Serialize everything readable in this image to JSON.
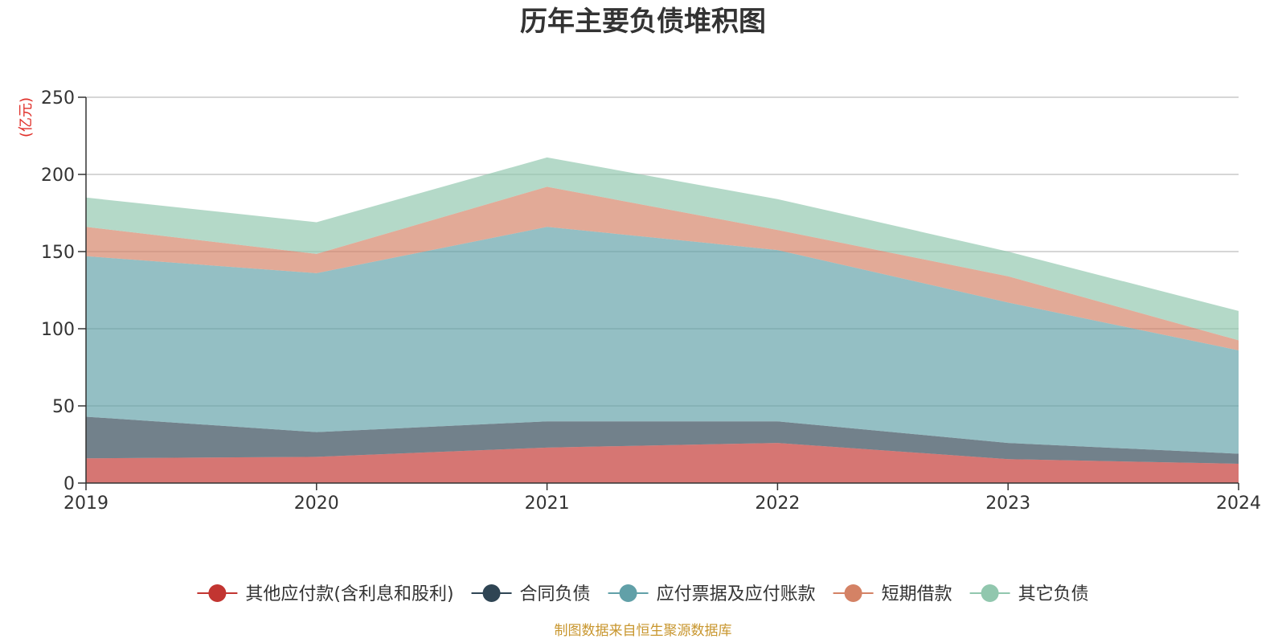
{
  "chart_data": {
    "type": "area",
    "stacked": true,
    "title": "历年主要负债堆积图",
    "unit_label": "(亿元)",
    "x": [
      "2019",
      "2020",
      "2021",
      "2022",
      "2023",
      "2024"
    ],
    "ylim": [
      0,
      250
    ],
    "yticks": [
      0,
      50,
      100,
      150,
      200,
      250
    ],
    "grid": true,
    "legend_position": "bottom-center",
    "series": [
      {
        "name": "其他应付款(含利息和股利)",
        "color": "#c23531",
        "values": [
          16,
          17,
          23,
          26,
          15.5,
          12.5
        ]
      },
      {
        "name": "合同负债",
        "color": "#2f4554",
        "values": [
          27,
          16,
          17,
          14,
          10.5,
          6.5
        ]
      },
      {
        "name": "应付票据及应付账款",
        "color": "#61a0a8",
        "values": [
          104,
          103,
          126,
          111,
          91,
          67
        ]
      },
      {
        "name": "短期借款",
        "color": "#d48265",
        "values": [
          19,
          12.5,
          26,
          13,
          17,
          6.5
        ]
      },
      {
        "name": "其它负债",
        "color": "#91c7ae",
        "values": [
          19,
          20.5,
          19,
          20,
          16,
          19
        ]
      }
    ],
    "source": "制图数据来自恒生聚源数据库"
  }
}
